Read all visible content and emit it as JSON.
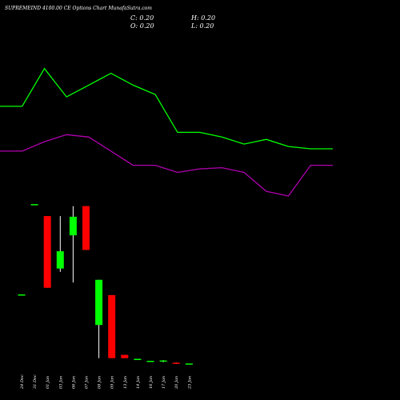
{
  "header": {
    "title": "SUPREMEIND 4100.00  CE Options  Chart MunafaSutra.com",
    "c_label": "C: 0.20",
    "o_label": "O: 0.20",
    "h_label": "H: 0.20",
    "l_label": "L: 0.20"
  },
  "colors": {
    "background": "#000000",
    "up": "#00ff00",
    "down": "#ff0000",
    "green_line": "#00ff00",
    "magenta_line": "#b000b0",
    "text": "#ffffff"
  },
  "chart_data": {
    "type": "candlestick",
    "categories": [
      "24 Dec",
      "31 Dec",
      "01 Jan",
      "03 Jan",
      "06 Jan",
      "07 Jan",
      "08 Jan",
      "09 Jan",
      "13 Jan",
      "14 Jan",
      "16 Jan",
      "17 Jan",
      "20 Jan",
      "23 Jan"
    ],
    "candles": [
      {
        "o": 10.6,
        "h": 10.6,
        "l": 10.6,
        "c": 10.6
      },
      {
        "o": 24.2,
        "h": 24.2,
        "l": 24.2,
        "c": 24.2
      },
      {
        "o": 22.4,
        "h": 22.4,
        "l": 11.6,
        "c": 11.6
      },
      {
        "o": 14.5,
        "h": 22.4,
        "l": 14.0,
        "c": 17.1
      },
      {
        "o": 19.5,
        "h": 23.9,
        "l": 12.4,
        "c": 22.3
      },
      {
        "o": 23.9,
        "h": 23.9,
        "l": 17.3,
        "c": 17.3
      },
      {
        "o": 6.0,
        "h": 12.8,
        "l": 1.0,
        "c": 12.8
      },
      {
        "o": 10.5,
        "h": 10.5,
        "l": 1.0,
        "c": 1.0
      },
      {
        "o": 1.5,
        "h": 1.5,
        "l": 1.0,
        "c": 1.0
      },
      {
        "o": 0.9,
        "h": 0.9,
        "l": 0.9,
        "c": 0.9
      },
      {
        "o": 0.6,
        "h": 0.6,
        "l": 0.6,
        "c": 0.6
      },
      {
        "o": 0.5,
        "h": 0.7,
        "l": 0.4,
        "c": 0.65
      },
      {
        "o": 0.32,
        "h": 0.36,
        "l": 0.24,
        "c": 0.26
      },
      {
        "o": 0.2,
        "h": 0.2,
        "l": 0.2,
        "c": 0.2
      }
    ],
    "green_line": [
      15.8,
      15.8,
      17.4,
      16.2,
      16.7,
      17.2,
      16.7,
      16.3,
      14.7,
      14.7,
      14.5,
      14.2,
      14.4,
      14.1,
      14.0,
      14.0
    ],
    "magenta_line": [
      13.9,
      13.9,
      14.3,
      14.6,
      14.5,
      13.9,
      13.3,
      13.3,
      13.0,
      13.15,
      13.2,
      13.0,
      12.2,
      12.0,
      13.3,
      13.3
    ]
  }
}
